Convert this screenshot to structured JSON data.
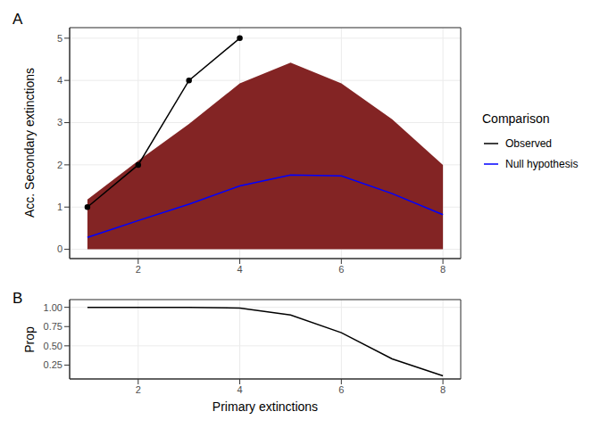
{
  "chart_data": [
    {
      "type": "line",
      "panel": "A",
      "y_label": "Acc. Secondary extinctions",
      "x": [
        1,
        2,
        3,
        4,
        5,
        6,
        7,
        8
      ],
      "xlim": [
        0.65,
        8.35
      ],
      "xticks": [
        2,
        4,
        6,
        8
      ],
      "ylim": [
        -0.22,
        5.25
      ],
      "yticks": [
        0,
        1,
        2,
        3,
        4,
        5
      ],
      "grid": true,
      "legend": "right",
      "legend_title": "Comparison",
      "ribbon": {
        "lower": [
          0,
          0,
          0,
          0,
          0,
          0,
          0,
          0
        ],
        "upper": [
          1.18,
          2.1,
          2.97,
          3.93,
          4.42,
          3.93,
          3.08,
          2.0
        ],
        "color": "#832424"
      },
      "series": [
        {
          "name": "Observed",
          "color": "#000000",
          "marker": "circle",
          "values": [
            1,
            2,
            4,
            5,
            null,
            null,
            null,
            null
          ]
        },
        {
          "name": "Null hypothesis",
          "color": "#0000FF",
          "values": [
            0.28,
            0.68,
            1.07,
            1.5,
            1.76,
            1.74,
            1.32,
            0.82
          ]
        }
      ]
    },
    {
      "type": "line",
      "panel": "B",
      "y_label": "Prop",
      "x_label": "Primary extinctions",
      "x": [
        1,
        2,
        3,
        4,
        5,
        6,
        7,
        8
      ],
      "values": [
        1.0,
        1.0,
        1.0,
        0.99,
        0.9,
        0.67,
        0.33,
        0.11
      ],
      "color": "#000000",
      "xlim": [
        0.65,
        8.35
      ],
      "xticks": [
        2,
        4,
        6,
        8
      ],
      "ylim": [
        0.07,
        1.1
      ],
      "yticks": [
        {
          "value": 0.25,
          "label": "0.25"
        },
        {
          "value": 0.5,
          "label": "0.50"
        },
        {
          "value": 0.75,
          "label": "0.75"
        },
        {
          "value": 1.0,
          "label": "1.00"
        }
      ],
      "grid": true
    }
  ]
}
